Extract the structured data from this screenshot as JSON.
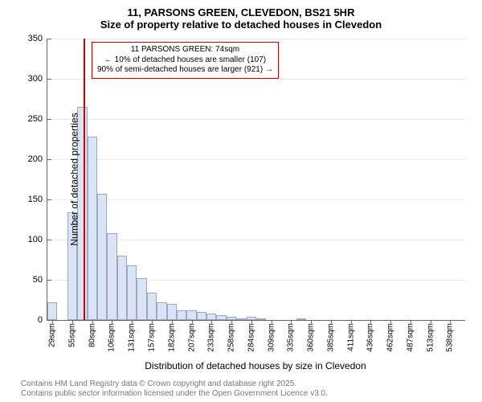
{
  "title": "11, PARSONS GREEN, CLEVEDON, BS21 5HR",
  "subtitle": "Size of property relative to detached houses in Clevedon",
  "ylabel": "Number of detached properties",
  "xlabel": "Distribution of detached houses by size in Clevedon",
  "chart": {
    "type": "histogram",
    "ylim": [
      0,
      350
    ],
    "ytick_step": 50,
    "background_color": "#ffffff",
    "grid_color": "#666666",
    "bar_fill": "#dbe4f5",
    "bar_stroke": "#9aa8c7",
    "marker_color": "#cc0000",
    "annotation_border": "#cc0000",
    "xticks": [
      "29sqm",
      "55sqm",
      "80sqm",
      "106sqm",
      "131sqm",
      "157sqm",
      "182sqm",
      "207sqm",
      "233sqm",
      "258sqm",
      "284sqm",
      "309sqm",
      "335sqm",
      "360sqm",
      "385sqm",
      "411sqm",
      "436sqm",
      "462sqm",
      "487sqm",
      "513sqm",
      "538sqm"
    ],
    "values": [
      22,
      0,
      134,
      265,
      228,
      157,
      108,
      80,
      68,
      52,
      34,
      22,
      20,
      12,
      12,
      10,
      8,
      6,
      4,
      2,
      4,
      2,
      0,
      0,
      0,
      2,
      0,
      0,
      0,
      0,
      0,
      0,
      0,
      0,
      0,
      0,
      0,
      0,
      0,
      0,
      0,
      0
    ],
    "marker_bin_index": 3.6,
    "annotation": {
      "line1": "11 PARSONS GREEN: 74sqm",
      "line2": "← 10% of detached houses are smaller (107)",
      "line3": "90% of semi-detached houses are larger (921) →"
    }
  },
  "footer": {
    "line1": "Contains HM Land Registry data © Crown copyright and database right 2025.",
    "line2": "Contains public sector information licensed under the Open Government Licence v3.0."
  }
}
